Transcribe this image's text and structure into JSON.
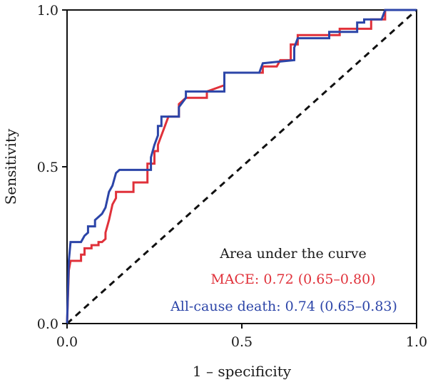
{
  "chart_data": {
    "type": "line",
    "xlabel": "1 – specificity",
    "ylabel": "Sensitivity",
    "xlim": [
      0,
      1
    ],
    "ylim": [
      0,
      1
    ],
    "x_ticks": [
      "0.0",
      "0.5",
      "1.0"
    ],
    "y_ticks": [
      "0.0",
      "0.5",
      "1.0"
    ],
    "grid": false,
    "legend_placement": "bottom-right",
    "legend_title": "Area under the curve",
    "series": [
      {
        "name": "MACE: 0.72 (0.65–0.80)",
        "color": "#e0313a",
        "points": [
          [
            0,
            0
          ],
          [
            0.005,
            0.17
          ],
          [
            0.01,
            0.2
          ],
          [
            0.04,
            0.2
          ],
          [
            0.04,
            0.22
          ],
          [
            0.05,
            0.22
          ],
          [
            0.05,
            0.24
          ],
          [
            0.07,
            0.24
          ],
          [
            0.07,
            0.25
          ],
          [
            0.09,
            0.25
          ],
          [
            0.09,
            0.26
          ],
          [
            0.1,
            0.26
          ],
          [
            0.11,
            0.27
          ],
          [
            0.11,
            0.29
          ],
          [
            0.12,
            0.33
          ],
          [
            0.13,
            0.38
          ],
          [
            0.14,
            0.4
          ],
          [
            0.14,
            0.42
          ],
          [
            0.19,
            0.42
          ],
          [
            0.19,
            0.45
          ],
          [
            0.23,
            0.45
          ],
          [
            0.23,
            0.51
          ],
          [
            0.25,
            0.51
          ],
          [
            0.25,
            0.55
          ],
          [
            0.26,
            0.55
          ],
          [
            0.26,
            0.57
          ],
          [
            0.27,
            0.6
          ],
          [
            0.28,
            0.63
          ],
          [
            0.29,
            0.66
          ],
          [
            0.32,
            0.66
          ],
          [
            0.32,
            0.7
          ],
          [
            0.34,
            0.72
          ],
          [
            0.4,
            0.72
          ],
          [
            0.4,
            0.74
          ],
          [
            0.45,
            0.76
          ],
          [
            0.45,
            0.8
          ],
          [
            0.56,
            0.8
          ],
          [
            0.56,
            0.82
          ],
          [
            0.6,
            0.82
          ],
          [
            0.61,
            0.84
          ],
          [
            0.64,
            0.84
          ],
          [
            0.64,
            0.89
          ],
          [
            0.66,
            0.89
          ],
          [
            0.66,
            0.92
          ],
          [
            0.78,
            0.92
          ],
          [
            0.78,
            0.94
          ],
          [
            0.87,
            0.94
          ],
          [
            0.87,
            0.97
          ],
          [
            0.91,
            0.97
          ],
          [
            0.91,
            1.0
          ],
          [
            1.0,
            1.0
          ]
        ]
      },
      {
        "name": "All-cause death: 0.74 (0.65–0.83)",
        "color": "#2c45a8",
        "points": [
          [
            0,
            0
          ],
          [
            0.005,
            0.2
          ],
          [
            0.01,
            0.26
          ],
          [
            0.04,
            0.26
          ],
          [
            0.05,
            0.28
          ],
          [
            0.06,
            0.29
          ],
          [
            0.06,
            0.31
          ],
          [
            0.08,
            0.31
          ],
          [
            0.08,
            0.33
          ],
          [
            0.1,
            0.35
          ],
          [
            0.11,
            0.37
          ],
          [
            0.12,
            0.42
          ],
          [
            0.13,
            0.44
          ],
          [
            0.14,
            0.48
          ],
          [
            0.15,
            0.49
          ],
          [
            0.24,
            0.49
          ],
          [
            0.24,
            0.53
          ],
          [
            0.25,
            0.57
          ],
          [
            0.26,
            0.6
          ],
          [
            0.26,
            0.63
          ],
          [
            0.27,
            0.63
          ],
          [
            0.27,
            0.66
          ],
          [
            0.32,
            0.66
          ],
          [
            0.32,
            0.69
          ],
          [
            0.34,
            0.72
          ],
          [
            0.34,
            0.74
          ],
          [
            0.45,
            0.74
          ],
          [
            0.45,
            0.8
          ],
          [
            0.55,
            0.8
          ],
          [
            0.56,
            0.83
          ],
          [
            0.65,
            0.84
          ],
          [
            0.65,
            0.88
          ],
          [
            0.66,
            0.91
          ],
          [
            0.75,
            0.91
          ],
          [
            0.75,
            0.93
          ],
          [
            0.83,
            0.93
          ],
          [
            0.83,
            0.96
          ],
          [
            0.85,
            0.96
          ],
          [
            0.85,
            0.97
          ],
          [
            0.9,
            0.97
          ],
          [
            0.91,
            1.0
          ],
          [
            1.0,
            1.0
          ]
        ]
      }
    ],
    "reference_line": {
      "points": [
        [
          0,
          0
        ],
        [
          1,
          1
        ]
      ],
      "style": "dashed",
      "color": "#111111"
    }
  }
}
